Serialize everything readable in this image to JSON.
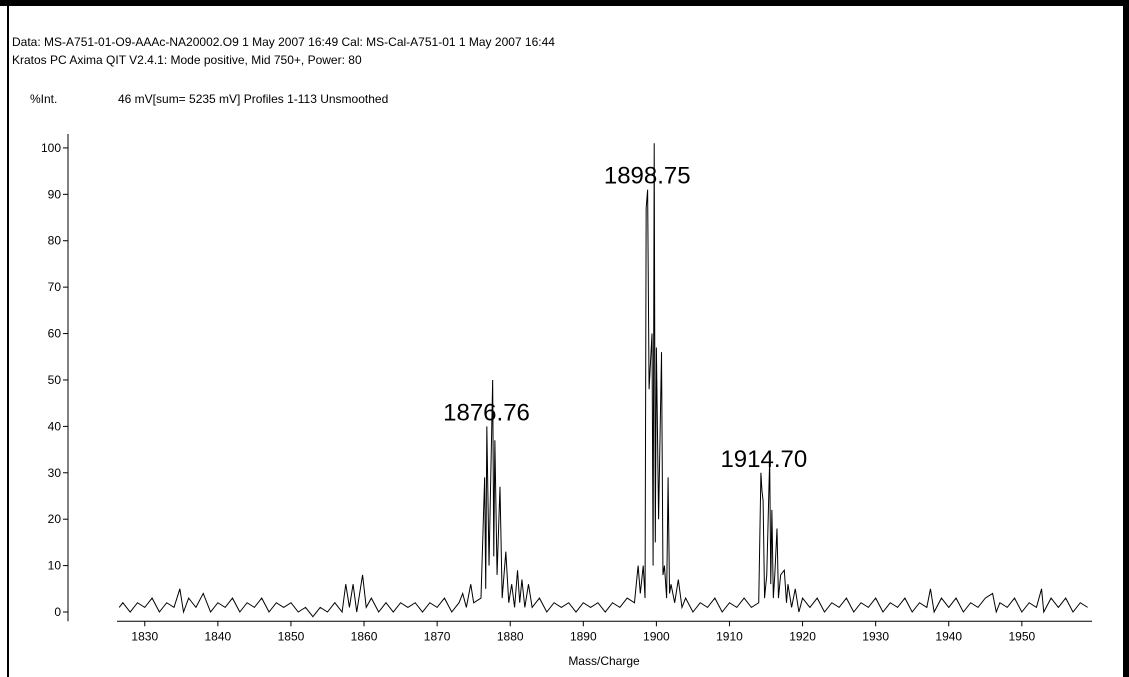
{
  "chart_data": {
    "type": "line",
    "header": [
      "Data: MS-A751-01-O9-AAAc-NA20002.O9 1 May 2007 16:49 Cal: MS-Cal-A751-01 1 May 2007 16:44",
      "Kratos PC Axima QIT V2.4.1: Mode positive, Mid 750+, Power: 80"
    ],
    "y_label": "%Int.",
    "info": "46 mV[sum= 5235 mV]  Profiles 1-113 Unsmoothed",
    "x_label": "Mass/Charge",
    "color": "#000000",
    "xlim": [
      1826.2,
      1959.6
    ],
    "ylim": [
      -2,
      103
    ],
    "xticks": [
      1830,
      1840,
      1850,
      1860,
      1870,
      1880,
      1890,
      1900,
      1910,
      1920,
      1930,
      1940,
      1950
    ],
    "yticks": [
      0,
      10,
      20,
      30,
      40,
      50,
      60,
      70,
      80,
      90,
      100
    ],
    "annotations": [
      {
        "label": "1876.76",
        "x": 1876.76
      },
      {
        "label": "1898.75",
        "x": 1898.75
      },
      {
        "label": "1914.70",
        "x": 1914.7
      }
    ],
    "x": [
      1826.5,
      1827,
      1828,
      1829,
      1830,
      1831,
      1832,
      1833,
      1834,
      1834.8,
      1835.3,
      1836,
      1837,
      1838,
      1839,
      1840,
      1841,
      1842,
      1843,
      1844,
      1845,
      1846,
      1847,
      1848,
      1849,
      1850,
      1851,
      1852,
      1853,
      1854,
      1855,
      1856,
      1857,
      1857.5,
      1858,
      1858.5,
      1859,
      1859.8,
      1860.3,
      1861,
      1862,
      1863,
      1864,
      1865,
      1866,
      1867,
      1868,
      1869,
      1870,
      1871,
      1872,
      1873,
      1873.5,
      1874,
      1874.6,
      1875,
      1876,
      1876.5,
      1876.65,
      1876.8,
      1877.1,
      1877.6,
      1877.75,
      1877.9,
      1878.2,
      1878.6,
      1878.9,
      1879.4,
      1879.8,
      1880.2,
      1880.6,
      1881,
      1881.3,
      1881.6,
      1882,
      1882.5,
      1883,
      1884,
      1885,
      1886,
      1887,
      1888,
      1889,
      1890,
      1891,
      1892,
      1893,
      1894,
      1895,
      1896,
      1897,
      1897.5,
      1897.8,
      1898.2,
      1898.45,
      1898.6,
      1898.8,
      1899,
      1899.4,
      1899.55,
      1899.7,
      1899.85,
      1900,
      1900.3,
      1900.7,
      1900.9,
      1901.1,
      1901.4,
      1901.6,
      1901.8,
      1902,
      1902.5,
      1903,
      1903.5,
      1904,
      1905,
      1906,
      1907,
      1908,
      1909,
      1910,
      1911,
      1912,
      1913,
      1914,
      1914.3,
      1914.45,
      1914.6,
      1914.8,
      1915.1,
      1915.5,
      1915.65,
      1915.8,
      1916,
      1916.2,
      1916.5,
      1916.7,
      1917,
      1917.5,
      1917.8,
      1918,
      1918.5,
      1919,
      1919.5,
      1920,
      1921,
      1922,
      1923,
      1924,
      1925,
      1926,
      1927,
      1928,
      1929,
      1930,
      1931,
      1932,
      1933,
      1934,
      1935,
      1936,
      1937,
      1937.5,
      1938,
      1939,
      1940,
      1941,
      1942,
      1943,
      1944,
      1945,
      1946,
      1946.5,
      1947,
      1948,
      1949,
      1950,
      1951,
      1952,
      1952.7,
      1953,
      1954,
      1955,
      1956,
      1957,
      1958,
      1959
    ],
    "values": [
      1,
      2,
      0,
      2,
      1,
      3,
      0,
      2,
      1,
      5,
      0,
      3,
      1,
      4,
      0,
      2,
      1,
      3,
      0,
      2,
      1,
      3,
      0,
      2,
      1,
      2,
      0,
      1,
      -1,
      1,
      0,
      2,
      0,
      6,
      1,
      6,
      0,
      8,
      1,
      3,
      0,
      2,
      0,
      2,
      1,
      2,
      0,
      2,
      1,
      3,
      0,
      2,
      4,
      1,
      6,
      2,
      3,
      29,
      5,
      40,
      10,
      50,
      12,
      37,
      8,
      27,
      3,
      13,
      2,
      6,
      1,
      9,
      2,
      7,
      1,
      6,
      1,
      3,
      0,
      2,
      1,
      2,
      0,
      2,
      1,
      2,
      0,
      2,
      1,
      3,
      2,
      10,
      4,
      10,
      3,
      87,
      91,
      48,
      60,
      10,
      101,
      15,
      57,
      20,
      56,
      8,
      10,
      3,
      29,
      4,
      6,
      2,
      7,
      1,
      3,
      0,
      2,
      1,
      3,
      0,
      2,
      1,
      3,
      1,
      2,
      30,
      26,
      24,
      3,
      8,
      33,
      6,
      22,
      3,
      8,
      18,
      3,
      8,
      9,
      2,
      6,
      1,
      5,
      0,
      3,
      1,
      3,
      0,
      2,
      1,
      3,
      0,
      2,
      1,
      3,
      0,
      2,
      1,
      3,
      0,
      2,
      1,
      5,
      0,
      3,
      1,
      3,
      0,
      2,
      1,
      3,
      4,
      0,
      2,
      1,
      3,
      0,
      2,
      1,
      5,
      0,
      3,
      1,
      3,
      0,
      2,
      1
    ]
  }
}
